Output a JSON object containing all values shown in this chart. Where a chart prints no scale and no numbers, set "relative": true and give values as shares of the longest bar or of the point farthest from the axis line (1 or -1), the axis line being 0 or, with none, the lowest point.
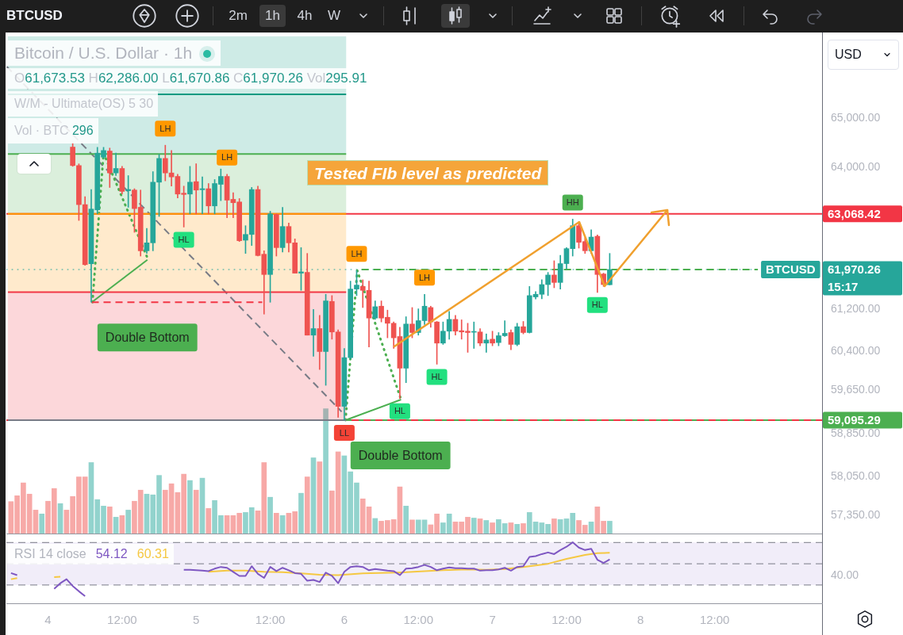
{
  "chart_data": [
    {
      "type": "candlestick",
      "title": "Bitcoin / U.S. Dollar · 1h",
      "subtitle": "O61,673.53 H62,286.00 L61,670.86 C61,970.26 Vol295.91",
      "x": [
        "--09-04T04:00",
        "--09-04T05:00",
        "--09-04T06:00",
        "--09-04T07:00",
        "--09-04T08:00",
        "--09-04T09:00",
        "--09-04T10:00",
        "--09-04T11:00",
        "--09-04T12:00",
        "--09-04T13:00",
        "--09-04T14:00",
        "--09-04T15:00",
        "--09-04T16:00",
        "--09-04T17:00",
        "--09-04T18:00",
        "--09-04T19:00",
        "--09-04T20:00",
        "--09-04T21:00",
        "--09-04T22:00",
        "--09-04T23:00",
        "--09-05T00:00",
        "--09-05T01:00",
        "--09-05T02:00",
        "--09-05T03:00",
        "--09-05T04:00",
        "--09-05T05:00",
        "--09-05T06:00",
        "--09-05T07:00",
        "--09-05T08:00",
        "--09-05T09:00",
        "--09-05T10:00",
        "--09-05T11:00",
        "--09-05T12:00",
        "--09-05T13:00",
        "--09-05T14:00",
        "--09-05T15:00",
        "--09-05T16:00",
        "--09-05T17:00",
        "--09-05T18:00",
        "--09-05T19:00",
        "--09-05T20:00",
        "--09-05T21:00",
        "--09-05T22:00",
        "--09-05T23:00",
        "--09-06T00:00",
        "--09-06T01:00",
        "--09-06T02:00",
        "--09-06T03:00",
        "--09-06T04:00",
        "--09-06T05:00",
        "--09-06T06:00",
        "--09-06T07:00",
        "--09-06T08:00",
        "--09-06T09:00",
        "--09-06T10:00",
        "--09-06T11:00",
        "--09-06T12:00",
        "--09-06T13:00",
        "--09-06T14:00",
        "--09-06T15:00",
        "--09-06T16:00",
        "--09-06T17:00",
        "--09-06T18:00",
        "--09-06T19:00",
        "--09-06T20:00",
        "--09-06T21:00",
        "--09-06T22:00",
        "--09-06T23:00",
        "--09-07T00:00",
        "--09-07T01:00",
        "--09-07T02:00",
        "--09-07T03:00",
        "--09-07T04:00",
        "--09-07T05:00",
        "--09-07T06:00",
        "--09-07T07:00",
        "--09-07T08:00",
        "--09-07T09:00",
        "--09-07T10:00",
        "--09-07T11:00",
        "--09-07T12:00",
        "--09-07T13:00",
        "--09-07T14:00",
        "--09-07T15:00",
        "--09-07T16:00",
        "--09-07T17:00",
        "--09-07T18:00",
        "--09-07T19:00"
      ],
      "ohlc": [
        [
          64410,
          64500,
          64020,
          64036
        ],
        [
          64036,
          64070,
          62937,
          63252
        ],
        [
          63252,
          63411,
          62053,
          62066
        ],
        [
          62083,
          63554,
          61334,
          63163
        ],
        [
          63147,
          64405,
          63068,
          64287
        ],
        [
          64207,
          64405,
          64180,
          64341
        ],
        [
          64330,
          64390,
          63595,
          63887
        ],
        [
          63887,
          64288,
          63833,
          63977
        ],
        [
          63977,
          64020,
          63463,
          63516
        ],
        [
          63530,
          63833,
          63199,
          63555
        ],
        [
          63543,
          63570,
          62702,
          63173
        ],
        [
          63199,
          63543,
          62234,
          62337
        ],
        [
          62337,
          62780,
          62286,
          62494
        ],
        [
          62494,
          63913,
          62337,
          63701
        ],
        [
          63701,
          64260,
          63016,
          64180
        ],
        [
          64180,
          64448,
          63728,
          63887
        ],
        [
          63887,
          64341,
          63622,
          63807
        ],
        [
          63817,
          63860,
          63384,
          63463
        ],
        [
          63480,
          63622,
          62806,
          63455
        ],
        [
          63463,
          64020,
          63068,
          63701
        ],
        [
          63712,
          64073,
          63068,
          63543
        ],
        [
          63550,
          63807,
          63068,
          63570
        ],
        [
          63570,
          63674,
          63068,
          63226
        ],
        [
          63226,
          63754,
          63068,
          63674
        ],
        [
          63658,
          63967,
          63331,
          63817
        ],
        [
          63817,
          63860,
          62989,
          63341
        ],
        [
          63357,
          63490,
          62989,
          63290
        ],
        [
          63305,
          63373,
          62520,
          62536
        ],
        [
          62546,
          62833,
          62286,
          62660
        ],
        [
          62660,
          63596,
          62442,
          63554
        ],
        [
          63554,
          63622,
          62234,
          62244
        ],
        [
          62270,
          62338,
          61105,
          61873
        ],
        [
          61873,
          63120,
          61334,
          63068
        ],
        [
          63057,
          63068,
          62234,
          62400
        ],
        [
          62400,
          63199,
          62312,
          62817
        ],
        [
          62817,
          62884,
          62312,
          62494
        ],
        [
          62494,
          62572,
          61899,
          61899
        ],
        [
          61899,
          62400,
          61565,
          61925
        ],
        [
          61915,
          62286,
          60701,
          60701
        ],
        [
          60701,
          61196,
          60298,
          60827
        ],
        [
          60827,
          61081,
          60047,
          60388
        ],
        [
          60388,
          61488,
          59748,
          61360
        ],
        [
          61350,
          61463,
          60624,
          60762
        ],
        [
          60762,
          60802,
          59150,
          59353
        ],
        [
          59353,
          60448,
          59095.29,
          60272
        ],
        [
          60272,
          61744,
          60248,
          61590
        ],
        [
          61590,
          61950,
          61462,
          61667
        ],
        [
          61641,
          61770,
          61232,
          61565
        ],
        [
          61565,
          61744,
          60474,
          61029
        ],
        [
          61029,
          61360,
          61004,
          61248
        ],
        [
          61258,
          61360,
          60954,
          61029
        ],
        [
          61044,
          61182,
          60650,
          60929
        ],
        [
          60929,
          60954,
          60448,
          60650
        ],
        [
          60675,
          60852,
          59501,
          60072
        ],
        [
          60072,
          61055,
          59798,
          60914
        ],
        [
          60914,
          61232,
          60650,
          60751
        ],
        [
          60751,
          61207,
          60701,
          60979
        ],
        [
          60979,
          61488,
          60903,
          61258
        ],
        [
          61232,
          61258,
          60852,
          60954
        ],
        [
          60954,
          60964,
          60147,
          60549
        ],
        [
          60549,
          60954,
          60524,
          60777
        ],
        [
          60777,
          61156,
          60624,
          61004
        ],
        [
          61004,
          61081,
          60701,
          60777
        ],
        [
          60787,
          60995,
          60624,
          60762
        ],
        [
          60777,
          60929,
          60373,
          60751
        ],
        [
          60757,
          60954,
          60448,
          60762
        ],
        [
          60762,
          60827,
          60498,
          60549
        ],
        [
          60549,
          60725,
          60373,
          60609
        ],
        [
          60624,
          60777,
          60498,
          60549
        ],
        [
          60559,
          60751,
          60498,
          60690
        ],
        [
          60690,
          60979,
          60675,
          60736
        ],
        [
          60751,
          60802,
          60423,
          60524
        ],
        [
          60524,
          60929,
          60498,
          60863
        ],
        [
          60863,
          60964,
          60725,
          60751
        ],
        [
          60751,
          61641,
          60741,
          61463
        ],
        [
          61437,
          61539,
          61397,
          61488
        ],
        [
          61488,
          61770,
          61400,
          61677
        ],
        [
          61677,
          61914,
          61463,
          61863
        ],
        [
          61863,
          62142,
          61615,
          61718
        ],
        [
          61718,
          62250,
          61590,
          62086
        ],
        [
          62086,
          62400,
          61986,
          62380
        ],
        [
          62380,
          62963,
          62234,
          62833
        ],
        [
          62833,
          62911,
          62390,
          62505
        ],
        [
          62520,
          62598,
          62286,
          62338
        ],
        [
          62338,
          62754,
          62286,
          62608
        ],
        [
          62624,
          62650,
          61525,
          61873
        ],
        [
          61883,
          61899,
          61641,
          61677
        ],
        [
          61673.53,
          62286.0,
          61670.86,
          61970.26
        ]
      ],
      "series": [
        {
          "type": "line",
          "color": "#787b86",
          "x": [
            "--09-03T17:30",
            "--09-06T00:18"
          ],
          "values": [
            59095.29,
            59095.29
          ]
        },
        {
          "type": "line",
          "color": "#f23645",
          "x": [
            "--09-03T17:30",
            "--09-06T00:18"
          ],
          "values": [
            61530,
            61530
          ],
          "lower": [
            59095.29,
            59095.29
          ],
          "upper": [
            61530,
            61530
          ]
        },
        {
          "type": "line",
          "color": "#ff9800",
          "x": [
            "--09-03T17:30",
            "--09-06T00:18"
          ],
          "values": [
            63068.42,
            63068.42
          ],
          "lower": [
            61530,
            61530
          ],
          "upper": [
            63068.42,
            63068.42
          ]
        },
        {
          "type": "line",
          "color": "#4caf50",
          "x": [
            "--09-03T17:30",
            "--09-06T00:18"
          ],
          "values": [
            64268,
            64268
          ],
          "lower": [
            63068.42,
            63068.42
          ],
          "upper": [
            64268,
            64268
          ]
        },
        {
          "type": "line",
          "color": "#089981",
          "x": [
            "--09-03T17:30",
            "--09-06T00:18"
          ],
          "values": [
            65490,
            65490
          ],
          "lower": [
            64268,
            64268
          ],
          "upper": [
            66700,
            66700
          ]
        },
        {
          "type": "line",
          "color": "#f23645",
          "line_style": "dashed",
          "x": [
            "--09-04T07:04",
            "--09-05T10:42"
          ],
          "values": [
            61334,
            61334
          ]
        },
        {
          "type": "line",
          "color": "#4caf50",
          "x": [
            "--09-04T07:06",
            "--09-04T16:06"
          ],
          "values": [
            61334,
            62160
          ]
        },
        {
          "type": "line",
          "color": "#4caf50",
          "line_style": "dotted",
          "x": [
            "--09-04T07:12",
            "--09-04T09:00",
            "--09-04T16:06"
          ],
          "values": [
            61334,
            64288,
            62200
          ]
        },
        {
          "type": "line",
          "color": "#787b86",
          "line_style": "dashed",
          "x": [
            "--09-03T17:19",
            "--09-05T23:34"
          ],
          "values": [
            66066,
            59253
          ]
        },
        {
          "type": "line",
          "color": "#4caf50",
          "x": [
            "--09-06T00:12",
            "--09-06T09:12"
          ],
          "values": [
            59095.29,
            59480
          ]
        },
        {
          "type": "line",
          "color": "#4caf50",
          "line_style": "dotted",
          "x": [
            "--09-06T00:12",
            "--09-06T02:06",
            "--09-06T09:12"
          ],
          "values": [
            59095.29,
            61950,
            59480
          ]
        },
        {
          "type": "line",
          "color": "#4caf50",
          "line_style": "dashed",
          "x": [
            "--09-06T02:48",
            "--09-08T19:00"
          ],
          "values": [
            61970.26,
            61970.26
          ]
        }
      ],
      "log": true,
      "xlim": [
        "--09-03T17:15",
        "--09-09T05:24"
      ],
      "ylim": [
        57020,
        66780
      ],
      "yticks": [
        {
          "value": 65000,
          "label": "65,000.00"
        },
        {
          "value": 64000,
          "label": "64,000.00"
        },
        {
          "value": 61200,
          "label": "61,200.00"
        },
        {
          "value": 60400,
          "label": "60,400.00"
        },
        {
          "value": 59650,
          "label": "59,650.00"
        },
        {
          "value": 58850,
          "label": "58,850.00"
        },
        {
          "value": 58050,
          "label": "58,050.00"
        },
        {
          "value": 57350,
          "label": "57,350.00"
        }
      ],
      "tick_labels": "y",
      "ref_lines": [
        {
          "axis": "y",
          "value": 63068.42,
          "label": "63,068.42",
          "color": "#f23645"
        },
        {
          "axis": "y",
          "value": 61970.26,
          "label": "61,970.26",
          "color": "#26a69a",
          "line_style": "dotted"
        },
        {
          "axis": "y",
          "value": 59095.29,
          "label": "59,095.29",
          "color": "#4caf50"
        },
        {
          "axis": "y",
          "value": 59095.29,
          "color": "#f23645",
          "line_style": "dashed"
        }
      ],
      "annotations": [
        "BTCUSD",
        "2m",
        "1h",
        "4h",
        "W",
        "USD",
        "W/M - Ultimate(OS) 5 30",
        "15:17",
        "Tested FIb level as predicted",
        {
          "text": "LH",
          "x": "--09-04T19:00",
          "y": 64448
        },
        {
          "text": "HL",
          "x": "--09-04T22:00",
          "y": 62806
        },
        {
          "text": "LH",
          "x": "--09-05T05:00",
          "y": 63860
        },
        {
          "text": "LL",
          "x": "--09-06T00:00",
          "y": 59095.29
        },
        {
          "text": "LH",
          "x": "--09-06T02:00",
          "y": 61950
        },
        {
          "text": "HL",
          "x": "--09-06T09:00",
          "y": 59501
        },
        {
          "text": "LH",
          "x": "--09-06T13:00",
          "y": 61488
        },
        {
          "text": "HL",
          "x": "--09-06T15:00",
          "y": 60147
        },
        {
          "text": "HH",
          "x": "--09-07T13:00",
          "y": 62963
        },
        {
          "text": "HL",
          "x": "--09-07T17:00",
          "y": 61525
        },
        {
          "text": "Double Bottom",
          "x": "--09-04T16:06",
          "y": 61334
        },
        {
          "text": "Double Bottom",
          "x": "--09-06T09:06",
          "y": 59095.29
        },
        {
          "text": "BTCUSD",
          "x": "--09-09T00:18",
          "y": 61970.26
        }
      ]
    },
    {
      "type": "bar",
      "relative": true,
      "tick_labels": false,
      "x": [
        "--09-03T18:00",
        "--09-03T19:00",
        "--09-03T20:00",
        "--09-03T21:00",
        "--09-03T22:00",
        "--09-03T23:00",
        "--09-04T00:00",
        "--09-04T01:00",
        "--09-04T02:00",
        "--09-04T03:00",
        "--09-04T04:00",
        "--09-04T05:00",
        "--09-04T06:00",
        "--09-04T07:00",
        "--09-04T08:00",
        "--09-04T09:00",
        "--09-04T10:00",
        "--09-04T11:00",
        "--09-04T12:00",
        "--09-04T13:00",
        "--09-04T14:00",
        "--09-04T15:00",
        "--09-04T16:00",
        "--09-04T17:00",
        "--09-04T18:00",
        "--09-04T19:00",
        "--09-04T20:00",
        "--09-04T21:00",
        "--09-04T22:00",
        "--09-04T23:00",
        "--09-05T00:00",
        "--09-05T01:00",
        "--09-05T02:00",
        "--09-05T03:00",
        "--09-05T04:00",
        "--09-05T05:00",
        "--09-05T06:00",
        "--09-05T07:00",
        "--09-05T08:00",
        "--09-05T09:00",
        "--09-05T10:00",
        "--09-05T11:00",
        "--09-05T12:00",
        "--09-05T13:00",
        "--09-05T14:00",
        "--09-05T15:00",
        "--09-05T16:00",
        "--09-05T17:00",
        "--09-05T18:00",
        "--09-05T19:00",
        "--09-05T20:00",
        "--09-05T21:00",
        "--09-05T22:00",
        "--09-05T23:00",
        "--09-06T00:00",
        "--09-06T01:00",
        "--09-06T02:00",
        "--09-06T03:00",
        "--09-06T04:00",
        "--09-06T05:00",
        "--09-06T06:00",
        "--09-06T07:00",
        "--09-06T08:00",
        "--09-06T09:00",
        "--09-06T10:00",
        "--09-06T11:00",
        "--09-06T12:00",
        "--09-06T13:00",
        "--09-06T14:00",
        "--09-06T15:00",
        "--09-06T16:00",
        "--09-06T17:00",
        "--09-06T18:00",
        "--09-06T19:00",
        "--09-06T20:00",
        "--09-06T21:00",
        "--09-06T22:00",
        "--09-06T23:00",
        "--09-07T00:00",
        "--09-07T01:00",
        "--09-07T02:00",
        "--09-07T03:00",
        "--09-07T04:00",
        "--09-07T05:00",
        "--09-07T06:00",
        "--09-07T07:00",
        "--09-07T08:00",
        "--09-07T09:00",
        "--09-07T10:00",
        "--09-07T11:00",
        "--09-07T12:00",
        "--09-07T13:00",
        "--09-07T14:00",
        "--09-07T15:00",
        "--09-07T16:00",
        "--09-07T17:00",
        "--09-07T18:00",
        "--09-07T19:00"
      ],
      "values": [
        0.256,
        0.303,
        0.406,
        0.316,
        0.188,
        0.157,
        0.259,
        0.361,
        0.24,
        0.188,
        0.297,
        0.454,
        0.454,
        0.569,
        0.272,
        0.22,
        0.214,
        0.131,
        0.144,
        0.188,
        0.259,
        0.348,
        0.316,
        0.31,
        0.466,
        0.348,
        0.399,
        0.329,
        0.476,
        0.425,
        0.348,
        0.444,
        0.201,
        0.265,
        0.144,
        0.144,
        0.144,
        0.163,
        0.169,
        0.208,
        0.182,
        0.569,
        0.291,
        0.163,
        0.144,
        0.163,
        0.176,
        0.323,
        0.454,
        0.607,
        0.575,
        1,
        0.342,
        0.655,
        0.623,
        0.495,
        0.406,
        0.278,
        0.214,
        0.121,
        0.099,
        0.105,
        0.112,
        0.374,
        0.22,
        0.109,
        0.109,
        0.109,
        0.07,
        0.157,
        0.086,
        0.157,
        0.093,
        0.093,
        0.131,
        0.124,
        0.118,
        0.105,
        0.086,
        0.112,
        0.08,
        0.086,
        0.074,
        0.08,
        0.169,
        0.093,
        0.086,
        0.074,
        0.118,
        0.112,
        0.118,
        0.163,
        0.105,
        0.067,
        0.093,
        0.214,
        0.099,
        0.099
      ],
      "colors": [
        "#f7a9a7",
        "#f7a9a7",
        "#f7a9a7",
        "#f7a9a7",
        "#f7a9a7",
        "#92d3cd",
        "#f7a9a7",
        "#f7a9a7",
        "#92d3cd",
        "#f7a9a7",
        "#f7a9a7",
        "#f7a9a7",
        "#f7a9a7",
        "#92d3cd",
        "#92d3cd",
        "#92d3cd",
        "#f7a9a7",
        "#92d3cd",
        "#f7a9a7",
        "#92d3cd",
        "#f7a9a7",
        "#f7a9a7",
        "#92d3cd",
        "#92d3cd",
        "#92d3cd",
        "#f7a9a7",
        "#f7a9a7",
        "#f7a9a7",
        "#f7a9a7",
        "#92d3cd",
        "#f7a9a7",
        "#92d3cd",
        "#f7a9a7",
        "#92d3cd",
        "#92d3cd",
        "#f7a9a7",
        "#f7a9a7",
        "#f7a9a7",
        "#92d3cd",
        "#92d3cd",
        "#f7a9a7",
        "#f7a9a7",
        "#92d3cd",
        "#f7a9a7",
        "#92d3cd",
        "#f7a9a7",
        "#f7a9a7",
        "#92d3cd",
        "#f7a9a7",
        "#92d3cd",
        "#f7a9a7",
        "#92d3cd",
        "#f7a9a7",
        "#f7a9a7",
        "#92d3cd",
        "#92d3cd",
        "#92d3cd",
        "#f7a9a7",
        "#f7a9a7",
        "#92d3cd",
        "#f7a9a7",
        "#f7a9a7",
        "#f7a9a7",
        "#f7a9a7",
        "#92d3cd",
        "#f7a9a7",
        "#92d3cd",
        "#92d3cd",
        "#f7a9a7",
        "#f7a9a7",
        "#92d3cd",
        "#92d3cd",
        "#f7a9a7",
        "#f7a9a7",
        "#f7a9a7",
        "#92d3cd",
        "#f7a9a7",
        "#92d3cd",
        "#f7a9a7",
        "#92d3cd",
        "#92d3cd",
        "#f7a9a7",
        "#92d3cd",
        "#f7a9a7",
        "#92d3cd",
        "#92d3cd",
        "#92d3cd",
        "#92d3cd",
        "#f7a9a7",
        "#92d3cd",
        "#92d3cd",
        "#92d3cd",
        "#f7a9a7",
        "#f7a9a7",
        "#92d3cd",
        "#f7a9a7",
        "#f7a9a7",
        "#92d3cd"
      ],
      "xlim": [
        "--09-03T17:15",
        "--09-09T05:24"
      ],
      "annotations": [
        "Vol · BTC 296"
      ]
    },
    {
      "type": "line",
      "title": "RSI 14 close",
      "relative": true,
      "x": [
        "--09-03T18:00",
        "--09-03T19:00",
        "--09-03T20:00",
        "--09-03T21:00",
        "--09-03T22:00",
        "--09-03T23:00",
        "--09-04T00:00",
        "--09-04T01:00",
        "--09-04T02:00",
        "--09-04T03:00",
        "--09-04T04:00",
        "--09-04T05:00",
        "--09-04T06:00",
        "--09-04T07:00",
        "--09-04T08:00",
        "--09-04T09:00",
        "--09-04T10:00",
        "--09-04T11:00",
        "--09-04T12:00",
        "--09-04T13:00",
        "--09-04T14:00",
        "--09-04T15:00",
        "--09-04T16:00",
        "--09-04T17:00",
        "--09-04T18:00",
        "--09-04T19:00",
        "--09-04T20:00",
        "--09-04T21:00",
        "--09-04T22:00",
        "--09-04T23:00",
        "--09-05T00:00",
        "--09-05T01:00",
        "--09-05T02:00",
        "--09-05T03:00",
        "--09-05T04:00",
        "--09-05T05:00",
        "--09-05T06:00",
        "--09-05T07:00",
        "--09-05T08:00",
        "--09-05T09:00",
        "--09-05T10:00",
        "--09-05T11:00",
        "--09-05T12:00",
        "--09-05T13:00",
        "--09-05T14:00",
        "--09-05T15:00",
        "--09-05T16:00",
        "--09-05T17:00",
        "--09-05T18:00",
        "--09-05T19:00",
        "--09-05T20:00",
        "--09-05T21:00",
        "--09-05T22:00",
        "--09-05T23:00",
        "--09-06T00:00",
        "--09-06T01:00",
        "--09-06T02:00",
        "--09-06T03:00",
        "--09-06T04:00",
        "--09-06T05:00",
        "--09-06T06:00",
        "--09-06T07:00",
        "--09-06T08:00",
        "--09-06T09:00",
        "--09-06T10:00",
        "--09-06T11:00",
        "--09-06T12:00",
        "--09-06T13:00",
        "--09-06T14:00",
        "--09-06T15:00",
        "--09-06T16:00",
        "--09-06T17:00",
        "--09-06T18:00",
        "--09-06T19:00",
        "--09-06T20:00",
        "--09-06T21:00",
        "--09-06T22:00",
        "--09-06T23:00",
        "--09-07T00:00",
        "--09-07T01:00",
        "--09-07T02:00",
        "--09-07T03:00",
        "--09-07T04:00",
        "--09-07T05:00",
        "--09-07T06:00",
        "--09-07T07:00",
        "--09-07T08:00",
        "--09-07T09:00",
        "--09-07T10:00",
        "--09-07T11:00",
        "--09-07T12:00",
        "--09-07T13:00",
        "--09-07T14:00",
        "--09-07T15:00",
        "--09-07T16:00",
        "--09-07T17:00",
        "--09-07T18:00",
        "--09-07T19:00"
      ],
      "series": [
        {
          "color": "#7e57c2",
          "values": [
            0.495,
            0.462,
            null,
            null,
            null,
            null,
            null,
            0.237,
            0.329,
            0.395,
            0.284,
            0.197,
            0.117,
            null,
            null,
            null,
            null,
            null,
            null,
            null,
            null,
            null,
            null,
            null,
            null,
            null,
            null,
            null,
            0.549,
            0.549,
            0.542,
            0.535,
            0.528,
            0.568,
            0.596,
            0.582,
            0.516,
            0.449,
            0.449,
            0.608,
            0.483,
            0.416,
            0.596,
            0.528,
            0.582,
            0.542,
            0.495,
            0.483,
            0.369,
            0.383,
            0.35,
            0.502,
            0.449,
            0.329,
            0.516,
            0.596,
            0.608,
            0.596,
            0.542,
            0.561,
            0.549,
            0.535,
            0.528,
            0.462,
            0.568,
            0.575,
            0.596,
            0.629,
            0.596,
            0.542,
            0.568,
            0.589,
            0.575,
            0.575,
            0.568,
            0.568,
            0.535,
            0.542,
            0.542,
            0.556,
            0.582,
            0.535,
            0.596,
            0.608,
            0.761,
            0.774,
            0.807,
            0.834,
            0.807,
            0.873,
            0.927,
            1,
            0.913,
            0.873,
            0.894,
            0.714,
            0.662,
            0.72
          ]
        },
        {
          "color": "#f5c842",
          "x": [
            "--09-03T18:00",
            "--09-03T19:00",
            "--09-03T22:00",
            "--09-04T01:00",
            "--09-04T02:00",
            "--09-04T14:00",
            "--09-05T02:00",
            "--09-05T05:00",
            "--09-05T08:00",
            "--09-05T11:00",
            "--09-05T14:00",
            "--09-05T17:00",
            "--09-05T20:00",
            "--09-05T23:00",
            "--09-06T03:00",
            "--09-06T07:00",
            "--09-06T10:00",
            "--09-06T13:00",
            "--09-06T16:00",
            "--09-06T20:00",
            "--09-06T23:00",
            "--09-07T02:00",
            "--09-07T05:00",
            "--09-07T09:00",
            "--09-07T12:00",
            "--09-07T15:00",
            "--09-07T17:00",
            "--09-07T19:00"
          ],
          "values": [
            0.395,
            0.413,
            null,
            0.429,
            0.436,
            null,
            0.516,
            0.535,
            0.535,
            0.516,
            0.509,
            0.49,
            0.469,
            0.462,
            0.49,
            0.502,
            0.509,
            0.528,
            0.542,
            0.556,
            0.549,
            0.561,
            0.596,
            0.648,
            0.728,
            0.794,
            0.821,
            0.828
          ]
        }
      ],
      "xlim": [
        "--09-03T17:15",
        "--09-09T05:24"
      ],
      "xticks": [
        {
          "value": "--09-04",
          "label": "4"
        },
        {
          "value": "--09-04T12:00",
          "label": "12:00"
        },
        {
          "value": "--09-05",
          "label": "5"
        },
        {
          "value": "--09-05T12:00",
          "label": "12:00"
        },
        {
          "value": "--09-06",
          "label": "6"
        },
        {
          "value": "--09-06T12:00",
          "label": "12:00"
        },
        {
          "value": "--09-07",
          "label": "7"
        },
        {
          "value": "--09-07T12:00",
          "label": "12:00"
        },
        {
          "value": "--09-08",
          "label": "8"
        },
        {
          "value": "--09-08T12:00",
          "label": "12:00"
        }
      ],
      "ref_lines": [
        {
          "axis": "y",
          "value": 0.997,
          "color": "#787b86",
          "line_style": "dashed"
        },
        {
          "axis": "y",
          "value": 0.648,
          "color": "#787b86",
          "line_style": "dashed"
        },
        {
          "axis": "y",
          "value": 0.3,
          "color": "#787b86",
          "line_style": "dashed"
        }
      ],
      "bands": [
        {
          "axis": "y",
          "from": 0.3,
          "to": 0.997,
          "color": "#f1edf9"
        }
      ],
      "annotations": [
        "40.00",
        "54.12",
        "60.31"
      ]
    }
  ]
}
